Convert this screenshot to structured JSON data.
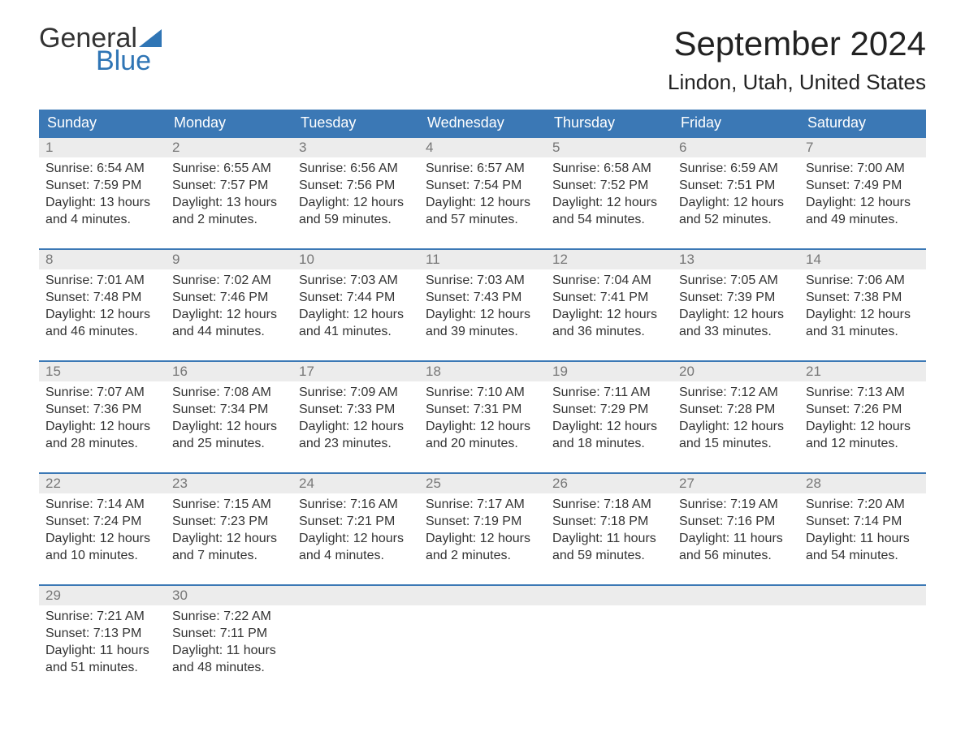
{
  "brand": {
    "line1": "General",
    "line2": "Blue",
    "accent": "#2f75b5"
  },
  "header": {
    "month_title": "September 2024",
    "location": "Lindon, Utah, United States"
  },
  "colors": {
    "header_bg": "#3b78b5",
    "header_text": "#ffffff",
    "daynum_bg": "#ececec",
    "daynum_border": "#3b78b5",
    "daynum_text": "#777777",
    "body_text": "#333333",
    "background": "#ffffff"
  },
  "typography": {
    "body_fontsize": 16,
    "weekday_fontsize": 18,
    "title_fontsize": 42,
    "location_fontsize": 26
  },
  "weekdays": [
    "Sunday",
    "Monday",
    "Tuesday",
    "Wednesday",
    "Thursday",
    "Friday",
    "Saturday"
  ],
  "weeks": [
    [
      {
        "n": "1",
        "sunrise": "Sunrise: 6:54 AM",
        "sunset": "Sunset: 7:59 PM",
        "d1": "Daylight: 13 hours",
        "d2": "and 4 minutes."
      },
      {
        "n": "2",
        "sunrise": "Sunrise: 6:55 AM",
        "sunset": "Sunset: 7:57 PM",
        "d1": "Daylight: 13 hours",
        "d2": "and 2 minutes."
      },
      {
        "n": "3",
        "sunrise": "Sunrise: 6:56 AM",
        "sunset": "Sunset: 7:56 PM",
        "d1": "Daylight: 12 hours",
        "d2": "and 59 minutes."
      },
      {
        "n": "4",
        "sunrise": "Sunrise: 6:57 AM",
        "sunset": "Sunset: 7:54 PM",
        "d1": "Daylight: 12 hours",
        "d2": "and 57 minutes."
      },
      {
        "n": "5",
        "sunrise": "Sunrise: 6:58 AM",
        "sunset": "Sunset: 7:52 PM",
        "d1": "Daylight: 12 hours",
        "d2": "and 54 minutes."
      },
      {
        "n": "6",
        "sunrise": "Sunrise: 6:59 AM",
        "sunset": "Sunset: 7:51 PM",
        "d1": "Daylight: 12 hours",
        "d2": "and 52 minutes."
      },
      {
        "n": "7",
        "sunrise": "Sunrise: 7:00 AM",
        "sunset": "Sunset: 7:49 PM",
        "d1": "Daylight: 12 hours",
        "d2": "and 49 minutes."
      }
    ],
    [
      {
        "n": "8",
        "sunrise": "Sunrise: 7:01 AM",
        "sunset": "Sunset: 7:48 PM",
        "d1": "Daylight: 12 hours",
        "d2": "and 46 minutes."
      },
      {
        "n": "9",
        "sunrise": "Sunrise: 7:02 AM",
        "sunset": "Sunset: 7:46 PM",
        "d1": "Daylight: 12 hours",
        "d2": "and 44 minutes."
      },
      {
        "n": "10",
        "sunrise": "Sunrise: 7:03 AM",
        "sunset": "Sunset: 7:44 PM",
        "d1": "Daylight: 12 hours",
        "d2": "and 41 minutes."
      },
      {
        "n": "11",
        "sunrise": "Sunrise: 7:03 AM",
        "sunset": "Sunset: 7:43 PM",
        "d1": "Daylight: 12 hours",
        "d2": "and 39 minutes."
      },
      {
        "n": "12",
        "sunrise": "Sunrise: 7:04 AM",
        "sunset": "Sunset: 7:41 PM",
        "d1": "Daylight: 12 hours",
        "d2": "and 36 minutes."
      },
      {
        "n": "13",
        "sunrise": "Sunrise: 7:05 AM",
        "sunset": "Sunset: 7:39 PM",
        "d1": "Daylight: 12 hours",
        "d2": "and 33 minutes."
      },
      {
        "n": "14",
        "sunrise": "Sunrise: 7:06 AM",
        "sunset": "Sunset: 7:38 PM",
        "d1": "Daylight: 12 hours",
        "d2": "and 31 minutes."
      }
    ],
    [
      {
        "n": "15",
        "sunrise": "Sunrise: 7:07 AM",
        "sunset": "Sunset: 7:36 PM",
        "d1": "Daylight: 12 hours",
        "d2": "and 28 minutes."
      },
      {
        "n": "16",
        "sunrise": "Sunrise: 7:08 AM",
        "sunset": "Sunset: 7:34 PM",
        "d1": "Daylight: 12 hours",
        "d2": "and 25 minutes."
      },
      {
        "n": "17",
        "sunrise": "Sunrise: 7:09 AM",
        "sunset": "Sunset: 7:33 PM",
        "d1": "Daylight: 12 hours",
        "d2": "and 23 minutes."
      },
      {
        "n": "18",
        "sunrise": "Sunrise: 7:10 AM",
        "sunset": "Sunset: 7:31 PM",
        "d1": "Daylight: 12 hours",
        "d2": "and 20 minutes."
      },
      {
        "n": "19",
        "sunrise": "Sunrise: 7:11 AM",
        "sunset": "Sunset: 7:29 PM",
        "d1": "Daylight: 12 hours",
        "d2": "and 18 minutes."
      },
      {
        "n": "20",
        "sunrise": "Sunrise: 7:12 AM",
        "sunset": "Sunset: 7:28 PM",
        "d1": "Daylight: 12 hours",
        "d2": "and 15 minutes."
      },
      {
        "n": "21",
        "sunrise": "Sunrise: 7:13 AM",
        "sunset": "Sunset: 7:26 PM",
        "d1": "Daylight: 12 hours",
        "d2": "and 12 minutes."
      }
    ],
    [
      {
        "n": "22",
        "sunrise": "Sunrise: 7:14 AM",
        "sunset": "Sunset: 7:24 PM",
        "d1": "Daylight: 12 hours",
        "d2": "and 10 minutes."
      },
      {
        "n": "23",
        "sunrise": "Sunrise: 7:15 AM",
        "sunset": "Sunset: 7:23 PM",
        "d1": "Daylight: 12 hours",
        "d2": "and 7 minutes."
      },
      {
        "n": "24",
        "sunrise": "Sunrise: 7:16 AM",
        "sunset": "Sunset: 7:21 PM",
        "d1": "Daylight: 12 hours",
        "d2": "and 4 minutes."
      },
      {
        "n": "25",
        "sunrise": "Sunrise: 7:17 AM",
        "sunset": "Sunset: 7:19 PM",
        "d1": "Daylight: 12 hours",
        "d2": "and 2 minutes."
      },
      {
        "n": "26",
        "sunrise": "Sunrise: 7:18 AM",
        "sunset": "Sunset: 7:18 PM",
        "d1": "Daylight: 11 hours",
        "d2": "and 59 minutes."
      },
      {
        "n": "27",
        "sunrise": "Sunrise: 7:19 AM",
        "sunset": "Sunset: 7:16 PM",
        "d1": "Daylight: 11 hours",
        "d2": "and 56 minutes."
      },
      {
        "n": "28",
        "sunrise": "Sunrise: 7:20 AM",
        "sunset": "Sunset: 7:14 PM",
        "d1": "Daylight: 11 hours",
        "d2": "and 54 minutes."
      }
    ],
    [
      {
        "n": "29",
        "sunrise": "Sunrise: 7:21 AM",
        "sunset": "Sunset: 7:13 PM",
        "d1": "Daylight: 11 hours",
        "d2": "and 51 minutes."
      },
      {
        "n": "30",
        "sunrise": "Sunrise: 7:22 AM",
        "sunset": "Sunset: 7:11 PM",
        "d1": "Daylight: 11 hours",
        "d2": "and 48 minutes."
      },
      {
        "n": "",
        "sunrise": "",
        "sunset": "",
        "d1": "",
        "d2": ""
      },
      {
        "n": "",
        "sunrise": "",
        "sunset": "",
        "d1": "",
        "d2": ""
      },
      {
        "n": "",
        "sunrise": "",
        "sunset": "",
        "d1": "",
        "d2": ""
      },
      {
        "n": "",
        "sunrise": "",
        "sunset": "",
        "d1": "",
        "d2": ""
      },
      {
        "n": "",
        "sunrise": "",
        "sunset": "",
        "d1": "",
        "d2": ""
      }
    ]
  ]
}
